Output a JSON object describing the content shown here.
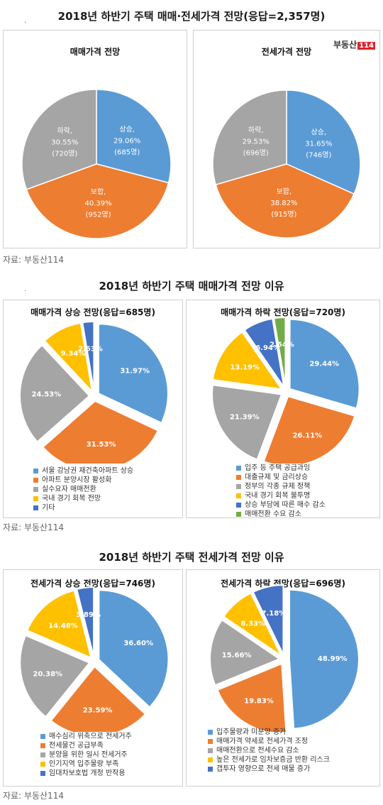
{
  "colors": {
    "blue": "#5b9bd5",
    "orange": "#ed7d31",
    "gray": "#a5a5a5",
    "yellow": "#ffc000",
    "navy": "#4472c4",
    "green": "#70ad47"
  },
  "sections": {
    "s1_title": "2018년 하반기 주택 매매·전세가격 전망(응답=2,357명)",
    "s2_title": "2018년 하반기 주택 매매가격 전망 이유",
    "s3_title": "2018년 하반기 주택 전세가격 전망 이유",
    "source": "자료: 부동산114"
  },
  "logo": {
    "text": "부동산",
    "num": "114"
  },
  "chart_data": [
    {
      "id": "c1",
      "type": "pie",
      "title": "매매가격 전망",
      "slices": [
        {
          "label": "상승,",
          "pct": "29.06%",
          "count": "(685명)",
          "value": 29.06,
          "color": "#5b9bd5"
        },
        {
          "label": "보합,",
          "pct": "40.39%",
          "count": "(952명)",
          "value": 40.39,
          "color": "#ed7d31"
        },
        {
          "label": "하락,",
          "pct": "30.55%",
          "count": "(720명)",
          "value": 30.55,
          "color": "#a5a5a5"
        }
      ]
    },
    {
      "id": "c2",
      "type": "pie",
      "title": "전세가격 전망",
      "slices": [
        {
          "label": "상승,",
          "pct": "31.65%",
          "count": "(746명)",
          "value": 31.65,
          "color": "#5b9bd5"
        },
        {
          "label": "보합,",
          "pct": "38.82%",
          "count": "(915명)",
          "value": 38.82,
          "color": "#ed7d31"
        },
        {
          "label": "하락,",
          "pct": "29.53%",
          "count": "(696명)",
          "value": 29.53,
          "color": "#a5a5a5"
        }
      ]
    },
    {
      "id": "c3",
      "type": "pie",
      "title": "매매가격 상승 전망(응답=685명)",
      "slices": [
        {
          "label": "서울 강남권 재건축아파트 상승",
          "pct": "31.97%",
          "value": 31.97,
          "color": "#5b9bd5"
        },
        {
          "label": "아파트 분양시장 활성화",
          "pct": "31.53%",
          "value": 31.53,
          "color": "#ed7d31"
        },
        {
          "label": "실수요자 매매전환",
          "pct": "24.53%",
          "value": 24.53,
          "color": "#a5a5a5"
        },
        {
          "label": "국내 경기 회복 전망",
          "pct": "9.34%",
          "value": 9.34,
          "color": "#ffc000"
        },
        {
          "label": "기타",
          "pct": "2.63%",
          "value": 2.63,
          "color": "#4472c4"
        }
      ]
    },
    {
      "id": "c4",
      "type": "pie",
      "title": "매매가격 하락 전망(응답=720명)",
      "slices": [
        {
          "label": "입주 등 주택 공급과잉",
          "pct": "29.44%",
          "value": 29.44,
          "color": "#5b9bd5"
        },
        {
          "label": "대출규제 및 금리상승",
          "pct": "26.11%",
          "value": 26.11,
          "color": "#ed7d31"
        },
        {
          "label": "정부의 각종 규제 정책",
          "pct": "21.39%",
          "value": 21.39,
          "color": "#a5a5a5"
        },
        {
          "label": "국내 경기 회복 불투명",
          "pct": "13.19%",
          "value": 13.19,
          "color": "#ffc000"
        },
        {
          "label": "상승 부담에 따른 매수 감소",
          "pct": "6.94%",
          "value": 6.94,
          "color": "#4472c4"
        },
        {
          "label": "매매전환 수요 감소",
          "pct": "2.64%",
          "value": 2.64,
          "color": "#70ad47"
        }
      ]
    },
    {
      "id": "c5",
      "type": "pie",
      "title": "전세가격 상승 전망(응답=746명)",
      "slices": [
        {
          "label": "매수심리 위축으로 전세거주",
          "pct": "36.60%",
          "value": 36.6,
          "color": "#5b9bd5"
        },
        {
          "label": "전세물건 공급부족",
          "pct": "23.59%",
          "value": 23.59,
          "color": "#ed7d31"
        },
        {
          "label": "분양을 위한 일시 전세거주",
          "pct": "20.38%",
          "value": 20.38,
          "color": "#a5a5a5"
        },
        {
          "label": "인기지역 입주물량 부족",
          "pct": "14.48%",
          "value": 14.48,
          "color": "#ffc000"
        },
        {
          "label": "임대차보호법 개정 반작용",
          "pct": "3.89%",
          "value": 3.89,
          "color": "#4472c4"
        }
      ]
    },
    {
      "id": "c6",
      "type": "pie",
      "title": "전세가격 하락 전망(응답=696명)",
      "slices": [
        {
          "label": "입주물량과 미분양 증가",
          "pct": "48.99%",
          "value": 48.99,
          "color": "#5b9bd5"
        },
        {
          "label": "매매가격 약세로 전세가격 조정",
          "pct": "19.83%",
          "value": 19.83,
          "color": "#ed7d31"
        },
        {
          "label": "매매전환으로 전세수요 감소",
          "pct": "15.66%",
          "value": 15.66,
          "color": "#a5a5a5"
        },
        {
          "label": "높은 전세가로 임차보증금 반환 리스크",
          "pct": "8.33%",
          "value": 8.33,
          "color": "#ffc000"
        },
        {
          "label": "갭투자 영향으로 전세 매물 증가",
          "pct": "7.18%",
          "value": 7.18,
          "color": "#4472c4"
        }
      ]
    }
  ]
}
